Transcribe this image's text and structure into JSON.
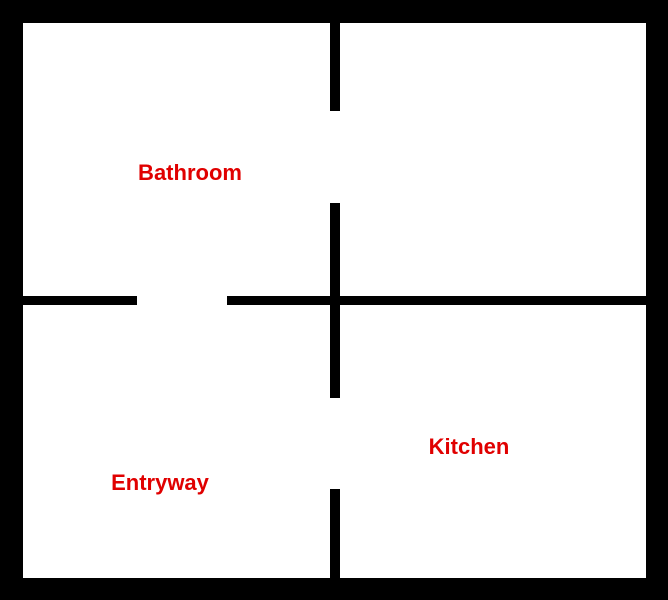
{
  "rooms": [
    {
      "label": "Bathroom"
    },
    {
      "label": ""
    },
    {
      "label": "Entryway"
    },
    {
      "label": "Kitchen"
    }
  ],
  "colors": {
    "wall": "#000000",
    "floor": "#ffffff",
    "label": "#e00000"
  }
}
